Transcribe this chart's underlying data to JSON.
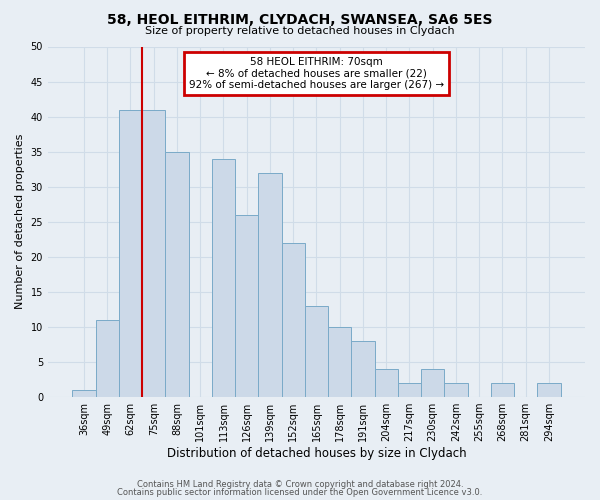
{
  "title": "58, HEOL EITHRIM, CLYDACH, SWANSEA, SA6 5ES",
  "subtitle": "Size of property relative to detached houses in Clydach",
  "xlabel": "Distribution of detached houses by size in Clydach",
  "ylabel": "Number of detached properties",
  "bar_labels": [
    "36sqm",
    "49sqm",
    "62sqm",
    "75sqm",
    "88sqm",
    "101sqm",
    "113sqm",
    "126sqm",
    "139sqm",
    "152sqm",
    "165sqm",
    "178sqm",
    "191sqm",
    "204sqm",
    "217sqm",
    "230sqm",
    "242sqm",
    "255sqm",
    "268sqm",
    "281sqm",
    "294sqm"
  ],
  "bar_values": [
    1,
    11,
    41,
    41,
    35,
    0,
    34,
    26,
    32,
    22,
    13,
    10,
    8,
    4,
    2,
    4,
    2,
    0,
    2,
    0,
    2
  ],
  "bar_color": "#ccd9e8",
  "bar_edge_color": "#7aaac8",
  "vline_x": 2.5,
  "vline_color": "#cc0000",
  "ylim": [
    0,
    50
  ],
  "yticks": [
    0,
    5,
    10,
    15,
    20,
    25,
    30,
    35,
    40,
    45,
    50
  ],
  "annotation_title": "58 HEOL EITHRIM: 70sqm",
  "annotation_line1": "← 8% of detached houses are smaller (22)",
  "annotation_line2": "92% of semi-detached houses are larger (267) →",
  "annotation_box_color": "#ffffff",
  "annotation_border_color": "#cc0000",
  "footer1": "Contains HM Land Registry data © Crown copyright and database right 2024.",
  "footer2": "Contains public sector information licensed under the Open Government Licence v3.0.",
  "background_color": "#e8eef4",
  "grid_color": "#d0dce8",
  "plot_bg_color": "#e8eef4"
}
